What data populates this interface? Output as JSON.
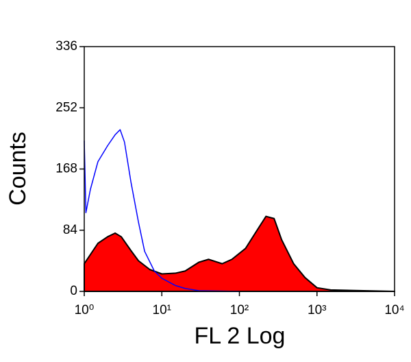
{
  "chart_data": {
    "type": "histogram-area",
    "xlabel": "FL 2 Log",
    "ylabel": "Counts",
    "xscale": "log",
    "xlim": [
      1,
      10000
    ],
    "xticks": [
      {
        "value": 1,
        "label": "10⁰"
      },
      {
        "value": 10,
        "label": "10¹"
      },
      {
        "value": 100,
        "label": "10²"
      },
      {
        "value": 1000,
        "label": "10³"
      },
      {
        "value": 10000,
        "label": "10⁴"
      }
    ],
    "ylim": [
      0,
      336
    ],
    "yticks": [
      0,
      84,
      168,
      252,
      336
    ],
    "series": [
      {
        "color": "#ff0000",
        "outline": "#000000",
        "fill": true,
        "x": [
          1,
          1.5,
          2,
          2.5,
          3,
          4,
          5,
          7,
          10,
          15,
          20,
          30,
          40,
          60,
          80,
          120,
          160,
          220,
          280,
          350,
          500,
          700,
          1000,
          1500,
          10000
        ],
        "values": [
          38,
          66,
          75,
          80,
          75,
          56,
          42,
          30,
          24,
          25,
          28,
          40,
          44,
          38,
          44,
          59,
          80,
          103,
          100,
          71,
          38,
          19,
          5,
          2,
          0
        ]
      },
      {
        "color": "#0000ff",
        "fill": false,
        "x": [
          1,
          1.05,
          1.2,
          1.5,
          2,
          2.5,
          2.9,
          3.3,
          4,
          5,
          6,
          8,
          10,
          15,
          20,
          30,
          100
        ],
        "values": [
          207,
          108,
          140,
          178,
          200,
          215,
          222,
          205,
          150,
          95,
          55,
          28,
          18,
          8,
          4,
          1,
          0
        ]
      }
    ]
  }
}
